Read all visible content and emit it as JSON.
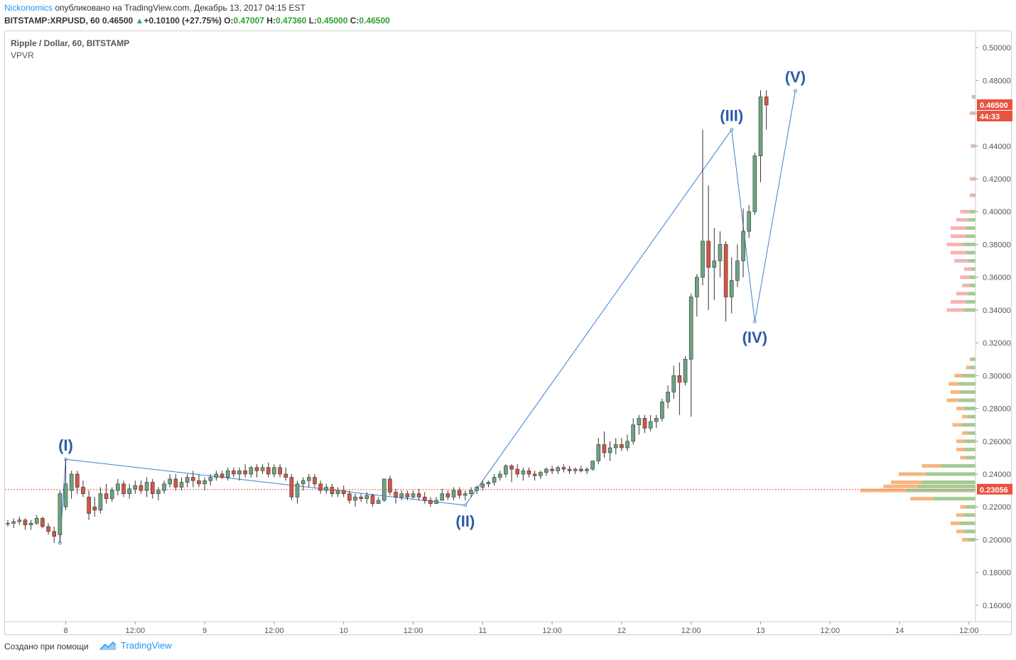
{
  "header": {
    "author": "Nickonomics",
    "published": "опубликовано на TradingView.com, Декабрь 13, 2017 04:15 EST",
    "symbol": "BITSTAMP:XRPUSD, 60",
    "last": "0.46500",
    "change_arrow": "▲",
    "change": "+0.10100 (+27.75%)",
    "o_label": "O:",
    "o_val": "0.47007",
    "h_label": "H:",
    "h_val": "0.47360",
    "l_label": "L:",
    "l_val": "0.45000",
    "c_label": "C:",
    "c_val": "0.46500"
  },
  "legend": {
    "title": "Ripple / Dollar, 60, BITSTAMP",
    "indicator": "VPVR"
  },
  "footer": {
    "made_with": "Создано при помощи",
    "brand": "TradingView"
  },
  "colors": {
    "up": "#6ba583",
    "down": "#d75442",
    "wave_line": "#3d7fd0",
    "wave_label": "#2d5aa8",
    "vp_up": "#8fbc77",
    "vp_down": "#f0a0a0",
    "vp_poc_up": "#f4a460",
    "price_tag": "#e8533f"
  },
  "chart_data": {
    "type": "candlestick",
    "title": "Ripple / Dollar, 60, BITSTAMP",
    "ylim": [
      0.15,
      0.51
    ],
    "y_ticks": [
      "0.16000",
      "0.18000",
      "0.20000",
      "0.22000",
      "0.24000",
      "0.26000",
      "0.28000",
      "0.30000",
      "0.32000",
      "0.34000",
      "0.36000",
      "0.38000",
      "0.40000",
      "0.42000",
      "0.44000",
      "0.46000",
      "0.48000",
      "0.50000"
    ],
    "x_ticks": [
      {
        "label": "8",
        "bar": 10
      },
      {
        "label": "12:00",
        "bar": 22
      },
      {
        "label": "9",
        "bar": 34
      },
      {
        "label": "12:00",
        "bar": 46
      },
      {
        "label": "10",
        "bar": 58
      },
      {
        "label": "12:00",
        "bar": 70
      },
      {
        "label": "11",
        "bar": 82
      },
      {
        "label": "12:00",
        "bar": 94
      },
      {
        "label": "12",
        "bar": 106
      },
      {
        "label": "12:00",
        "bar": 118
      },
      {
        "label": "13",
        "bar": 130
      },
      {
        "label": "12:00",
        "bar": 142
      },
      {
        "label": "14",
        "bar": 154
      },
      {
        "label": "12:00",
        "bar": 166
      }
    ],
    "bars_per_day": 24,
    "candles": [
      [
        0.21,
        0.212,
        0.208,
        0.21
      ],
      [
        0.21,
        0.213,
        0.207,
        0.211
      ],
      [
        0.211,
        0.214,
        0.209,
        0.212
      ],
      [
        0.212,
        0.213,
        0.206,
        0.209
      ],
      [
        0.209,
        0.212,
        0.206,
        0.21
      ],
      [
        0.21,
        0.215,
        0.209,
        0.213
      ],
      [
        0.213,
        0.214,
        0.207,
        0.208
      ],
      [
        0.208,
        0.21,
        0.203,
        0.205
      ],
      [
        0.205,
        0.208,
        0.198,
        0.202
      ],
      [
        0.203,
        0.23,
        0.198,
        0.228
      ],
      [
        0.22,
        0.249,
        0.218,
        0.234
      ],
      [
        0.23,
        0.242,
        0.225,
        0.24
      ],
      [
        0.24,
        0.242,
        0.228,
        0.232
      ],
      [
        0.232,
        0.236,
        0.226,
        0.228
      ],
      [
        0.226,
        0.23,
        0.212,
        0.216
      ],
      [
        0.22,
        0.226,
        0.214,
        0.218
      ],
      [
        0.218,
        0.232,
        0.216,
        0.228
      ],
      [
        0.228,
        0.234,
        0.222,
        0.225
      ],
      [
        0.225,
        0.232,
        0.223,
        0.23
      ],
      [
        0.23,
        0.237,
        0.227,
        0.234
      ],
      [
        0.234,
        0.236,
        0.226,
        0.228
      ],
      [
        0.228,
        0.234,
        0.225,
        0.231
      ],
      [
        0.231,
        0.236,
        0.228,
        0.233
      ],
      [
        0.233,
        0.236,
        0.228,
        0.23
      ],
      [
        0.23,
        0.238,
        0.226,
        0.235
      ],
      [
        0.235,
        0.237,
        0.225,
        0.228
      ],
      [
        0.228,
        0.232,
        0.224,
        0.23
      ],
      [
        0.23,
        0.236,
        0.228,
        0.234
      ],
      [
        0.234,
        0.24,
        0.232,
        0.237
      ],
      [
        0.237,
        0.24,
        0.23,
        0.232
      ],
      [
        0.232,
        0.238,
        0.23,
        0.235
      ],
      [
        0.235,
        0.24,
        0.232,
        0.238
      ],
      [
        0.238,
        0.242,
        0.232,
        0.236
      ],
      [
        0.236,
        0.24,
        0.232,
        0.234
      ],
      [
        0.234,
        0.238,
        0.23,
        0.236
      ],
      [
        0.236,
        0.24,
        0.233,
        0.238
      ],
      [
        0.238,
        0.242,
        0.236,
        0.24
      ],
      [
        0.24,
        0.242,
        0.237,
        0.238
      ],
      [
        0.238,
        0.244,
        0.236,
        0.242
      ],
      [
        0.242,
        0.244,
        0.238,
        0.24
      ],
      [
        0.24,
        0.244,
        0.236,
        0.242
      ],
      [
        0.242,
        0.246,
        0.238,
        0.24
      ],
      [
        0.24,
        0.245,
        0.238,
        0.244
      ],
      [
        0.244,
        0.246,
        0.238,
        0.242
      ],
      [
        0.242,
        0.246,
        0.24,
        0.244
      ],
      [
        0.244,
        0.247,
        0.238,
        0.24
      ],
      [
        0.24,
        0.246,
        0.238,
        0.244
      ],
      [
        0.244,
        0.246,
        0.238,
        0.24
      ],
      [
        0.24,
        0.244,
        0.236,
        0.238
      ],
      [
        0.238,
        0.24,
        0.224,
        0.226
      ],
      [
        0.226,
        0.236,
        0.222,
        0.234
      ],
      [
        0.234,
        0.238,
        0.23,
        0.236
      ],
      [
        0.236,
        0.24,
        0.232,
        0.238
      ],
      [
        0.238,
        0.24,
        0.232,
        0.234
      ],
      [
        0.234,
        0.236,
        0.228,
        0.23
      ],
      [
        0.23,
        0.234,
        0.228,
        0.232
      ],
      [
        0.232,
        0.234,
        0.226,
        0.228
      ],
      [
        0.228,
        0.232,
        0.226,
        0.23
      ],
      [
        0.23,
        0.233,
        0.226,
        0.228
      ],
      [
        0.228,
        0.23,
        0.222,
        0.224
      ],
      [
        0.224,
        0.228,
        0.22,
        0.226
      ],
      [
        0.226,
        0.228,
        0.223,
        0.225
      ],
      [
        0.225,
        0.229,
        0.222,
        0.227
      ],
      [
        0.227,
        0.228,
        0.22,
        0.222
      ],
      [
        0.222,
        0.226,
        0.222,
        0.224
      ],
      [
        0.224,
        0.234,
        0.223,
        0.237
      ],
      [
        0.237,
        0.239,
        0.227,
        0.229
      ],
      [
        0.229,
        0.231,
        0.222,
        0.226
      ],
      [
        0.226,
        0.23,
        0.224,
        0.228
      ],
      [
        0.228,
        0.23,
        0.224,
        0.226
      ],
      [
        0.226,
        0.23,
        0.225,
        0.228
      ],
      [
        0.228,
        0.231,
        0.224,
        0.226
      ],
      [
        0.226,
        0.229,
        0.222,
        0.224
      ],
      [
        0.224,
        0.226,
        0.22,
        0.222
      ],
      [
        0.222,
        0.226,
        0.222,
        0.224
      ],
      [
        0.224,
        0.231,
        0.224,
        0.228
      ],
      [
        0.228,
        0.23,
        0.224,
        0.226
      ],
      [
        0.226,
        0.232,
        0.224,
        0.23
      ],
      [
        0.23,
        0.232,
        0.225,
        0.227
      ],
      [
        0.227,
        0.23,
        0.224,
        0.228
      ],
      [
        0.228,
        0.232,
        0.226,
        0.23
      ],
      [
        0.23,
        0.233,
        0.228,
        0.232
      ],
      [
        0.232,
        0.236,
        0.23,
        0.234
      ],
      [
        0.234,
        0.236,
        0.232,
        0.235
      ],
      [
        0.235,
        0.24,
        0.233,
        0.238
      ],
      [
        0.238,
        0.242,
        0.236,
        0.24
      ],
      [
        0.24,
        0.246,
        0.238,
        0.245
      ],
      [
        0.245,
        0.246,
        0.235,
        0.243
      ],
      [
        0.243,
        0.246,
        0.238,
        0.24
      ],
      [
        0.24,
        0.244,
        0.236,
        0.242
      ],
      [
        0.242,
        0.244,
        0.238,
        0.24
      ],
      [
        0.24,
        0.242,
        0.236,
        0.239
      ],
      [
        0.239,
        0.242,
        0.237,
        0.241
      ],
      [
        0.241,
        0.244,
        0.239,
        0.243
      ],
      [
        0.243,
        0.245,
        0.24,
        0.242
      ],
      [
        0.242,
        0.245,
        0.24,
        0.244
      ],
      [
        0.244,
        0.246,
        0.241,
        0.243
      ],
      [
        0.243,
        0.245,
        0.24,
        0.242
      ],
      [
        0.242,
        0.244,
        0.24,
        0.243
      ],
      [
        0.243,
        0.245,
        0.241,
        0.242
      ],
      [
        0.242,
        0.244,
        0.24,
        0.243
      ],
      [
        0.243,
        0.247,
        0.242,
        0.248
      ],
      [
        0.248,
        0.262,
        0.246,
        0.258
      ],
      [
        0.258,
        0.266,
        0.25,
        0.253
      ],
      [
        0.253,
        0.26,
        0.248,
        0.256
      ],
      [
        0.256,
        0.262,
        0.252,
        0.258
      ],
      [
        0.258,
        0.262,
        0.254,
        0.256
      ],
      [
        0.256,
        0.264,
        0.254,
        0.26
      ],
      [
        0.26,
        0.274,
        0.258,
        0.27
      ],
      [
        0.27,
        0.276,
        0.264,
        0.274
      ],
      [
        0.274,
        0.276,
        0.265,
        0.268
      ],
      [
        0.268,
        0.276,
        0.266,
        0.272
      ],
      [
        0.272,
        0.276,
        0.268,
        0.274
      ],
      [
        0.274,
        0.286,
        0.272,
        0.284
      ],
      [
        0.284,
        0.294,
        0.28,
        0.29
      ],
      [
        0.29,
        0.306,
        0.286,
        0.3
      ],
      [
        0.3,
        0.308,
        0.276,
        0.296
      ],
      [
        0.296,
        0.312,
        0.294,
        0.31
      ],
      [
        0.31,
        0.35,
        0.275,
        0.348
      ],
      [
        0.348,
        0.362,
        0.336,
        0.36
      ],
      [
        0.36,
        0.45,
        0.355,
        0.382
      ],
      [
        0.382,
        0.416,
        0.34,
        0.366
      ],
      [
        0.366,
        0.39,
        0.346,
        0.37
      ],
      [
        0.37,
        0.388,
        0.36,
        0.38
      ],
      [
        0.38,
        0.382,
        0.333,
        0.348
      ],
      [
        0.348,
        0.372,
        0.338,
        0.358
      ],
      [
        0.358,
        0.38,
        0.354,
        0.37
      ],
      [
        0.37,
        0.402,
        0.36,
        0.388
      ],
      [
        0.388,
        0.404,
        0.384,
        0.4
      ],
      [
        0.4,
        0.436,
        0.398,
        0.434
      ],
      [
        0.434,
        0.474,
        0.418,
        0.47
      ],
      [
        0.47,
        0.474,
        0.45,
        0.465
      ]
    ],
    "vpvr": {
      "poc_price": 0.23056,
      "rows": [
        {
          "p": 0.2,
          "up": 0.4,
          "dn": 0.3
        },
        {
          "p": 0.205,
          "up": 0.6,
          "dn": 0.4
        },
        {
          "p": 0.21,
          "up": 0.8,
          "dn": 0.5
        },
        {
          "p": 0.215,
          "up": 0.6,
          "dn": 0.4
        },
        {
          "p": 0.22,
          "up": 0.5,
          "dn": 0.3
        },
        {
          "p": 0.225,
          "up": 2.2,
          "dn": 1.2
        },
        {
          "p": 0.23,
          "up": 3.6,
          "dn": 2.4
        },
        {
          "p": 0.2325,
          "up": 3.0,
          "dn": 1.8
        },
        {
          "p": 0.235,
          "up": 2.8,
          "dn": 1.6
        },
        {
          "p": 0.24,
          "up": 2.6,
          "dn": 1.4
        },
        {
          "p": 0.245,
          "up": 1.8,
          "dn": 1.0
        },
        {
          "p": 0.25,
          "up": 0.5,
          "dn": 0.3
        },
        {
          "p": 0.255,
          "up": 0.6,
          "dn": 0.4
        },
        {
          "p": 0.26,
          "up": 0.6,
          "dn": 0.4
        },
        {
          "p": 0.265,
          "up": 0.4,
          "dn": 0.3
        },
        {
          "p": 0.27,
          "up": 0.7,
          "dn": 0.5
        },
        {
          "p": 0.275,
          "up": 0.4,
          "dn": 0.3
        },
        {
          "p": 0.28,
          "up": 0.6,
          "dn": 0.4
        },
        {
          "p": 0.285,
          "up": 0.9,
          "dn": 0.6
        },
        {
          "p": 0.29,
          "up": 0.8,
          "dn": 0.5
        },
        {
          "p": 0.295,
          "up": 0.9,
          "dn": 0.5
        },
        {
          "p": 0.3,
          "up": 0.7,
          "dn": 0.4
        },
        {
          "p": 0.305,
          "up": 0.3,
          "dn": 0.2
        },
        {
          "p": 0.31,
          "up": 0.2,
          "dn": 0.1
        },
        {
          "p": 0.34,
          "up": 0.6,
          "dn": 0.9
        },
        {
          "p": 0.345,
          "up": 0.5,
          "dn": 0.8
        },
        {
          "p": 0.35,
          "up": 0.4,
          "dn": 0.6
        },
        {
          "p": 0.355,
          "up": 0.3,
          "dn": 0.4
        },
        {
          "p": 0.36,
          "up": 0.3,
          "dn": 0.5
        },
        {
          "p": 0.365,
          "up": 0.2,
          "dn": 0.4
        },
        {
          "p": 0.37,
          "up": 0.4,
          "dn": 0.7
        },
        {
          "p": 0.375,
          "up": 0.5,
          "dn": 0.8
        },
        {
          "p": 0.38,
          "up": 0.6,
          "dn": 0.9
        },
        {
          "p": 0.385,
          "up": 0.5,
          "dn": 0.8
        },
        {
          "p": 0.39,
          "up": 0.5,
          "dn": 0.8
        },
        {
          "p": 0.395,
          "up": 0.4,
          "dn": 0.6
        },
        {
          "p": 0.4,
          "up": 0.3,
          "dn": 0.5
        },
        {
          "p": 0.41,
          "up": 0.1,
          "dn": 0.2
        },
        {
          "p": 0.42,
          "up": 0.1,
          "dn": 0.2
        },
        {
          "p": 0.44,
          "up": 0.1,
          "dn": 0.15
        },
        {
          "p": 0.46,
          "up": 0.1,
          "dn": 0.2
        },
        {
          "p": 0.47,
          "up": 0.1,
          "dn": 0.1
        }
      ]
    },
    "waves": [
      {
        "label": "(I)",
        "bar": 10,
        "price": 0.249,
        "pos": "above"
      },
      {
        "label": "(II)",
        "bar": 79,
        "price": 0.221,
        "pos": "below"
      },
      {
        "label": "(III)",
        "bar": 125,
        "price": 0.45,
        "pos": "above"
      },
      {
        "label": "(IV)",
        "bar": 129,
        "price": 0.333,
        "pos": "below"
      },
      {
        "label": "(V)",
        "bar": 136,
        "price": 0.4736,
        "pos": "above"
      }
    ],
    "wave_start": {
      "bar": 9,
      "price": 0.198
    },
    "price_tags": {
      "last": "0.46500",
      "countdown": "44:33",
      "poc": "0.23056"
    }
  }
}
